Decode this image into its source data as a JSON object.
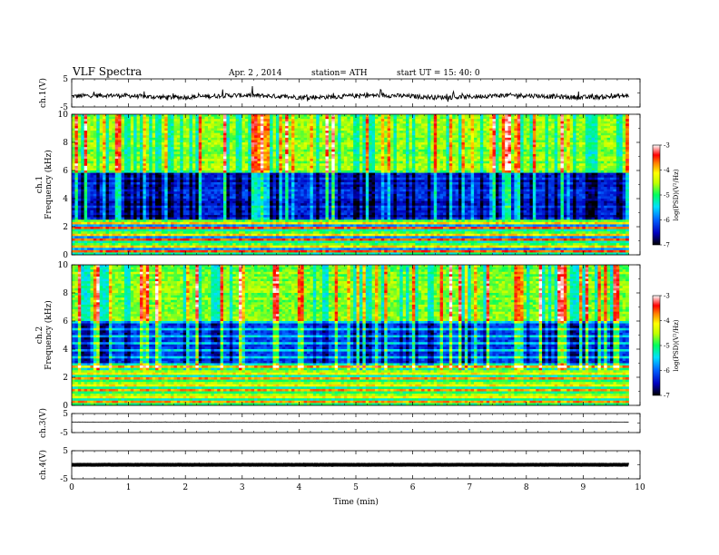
{
  "header": {
    "title": "VLF  Spectra",
    "date": "Apr. 2 , 2014",
    "station": "station= ATH",
    "start": "start  UT  =    15: 40: 0"
  },
  "chart_data": [
    {
      "type": "line",
      "name": "ch1-waveform",
      "ylabel": "ch.1(V)",
      "ylim": [
        -5,
        5
      ],
      "y_ticks": [
        "5",
        "-5"
      ],
      "approx_level": -1.2,
      "approx_spread": 0.8
    },
    {
      "type": "heatmap",
      "name": "ch1-spectrogram",
      "ylabel": "ch.1\nFrequency  (kHz)",
      "ylabel_lines": [
        "ch.1",
        "Frequency  (kHz)"
      ],
      "y_ticks": [
        "0",
        "2",
        "4",
        "6",
        "8",
        "10"
      ],
      "ylim": [
        0,
        10
      ],
      "xlim": [
        0,
        9.8
      ],
      "colorbar": {
        "label": "log(PSD)(V²/Hz)",
        "ticks": [
          "-3",
          "-4",
          "-5",
          "-6",
          "-7"
        ],
        "range": [
          -7,
          -3
        ]
      },
      "bands_kHz": [
        {
          "from": 0,
          "to": 2.5,
          "desc": "striped lines, mixed red/green/blue"
        },
        {
          "from": 2.5,
          "to": 5.8,
          "desc": "dark blue/black background"
        },
        {
          "from": 5.8,
          "to": 10,
          "desc": "green/yellow with red vertical sferics"
        }
      ]
    },
    {
      "type": "heatmap",
      "name": "ch2-spectrogram",
      "ylabel": "ch.2\nFrequency  (kHz)",
      "ylabel_lines": [
        "ch.2",
        "Frequency  (kHz)"
      ],
      "y_ticks": [
        "0",
        "2",
        "4",
        "6",
        "8",
        "10"
      ],
      "ylim": [
        0,
        10
      ],
      "xlim": [
        0,
        9.8
      ],
      "colorbar": {
        "label": "log(PSD)(V²/Hz)",
        "ticks": [
          "-3",
          "-4",
          "-5",
          "-6",
          "-7"
        ],
        "range": [
          -7,
          -3
        ]
      },
      "bands_kHz": [
        {
          "from": 0,
          "to": 3.0,
          "desc": "striped lines, green/yellow/red"
        },
        {
          "from": 3.0,
          "to": 6.0,
          "desc": "blue horizontal banding"
        },
        {
          "from": 6.0,
          "to": 10,
          "desc": "green/yellow with vertical sferics"
        }
      ]
    },
    {
      "type": "line",
      "name": "ch3-waveform",
      "ylabel": "ch.3(V)",
      "ylim": [
        -5,
        5
      ],
      "y_ticks": [
        "5",
        "-5"
      ],
      "approx_level": 0.5,
      "approx_spread": 0.1
    },
    {
      "type": "line",
      "name": "ch4-waveform",
      "ylabel": "ch.4(V)",
      "ylim": [
        -5,
        5
      ],
      "y_ticks": [
        "5",
        "-5"
      ],
      "approx_level": 0.0,
      "approx_spread": 0.05
    }
  ],
  "x_axis": {
    "label": "Time  (min)",
    "ticks": [
      "0",
      "1",
      "2",
      "3",
      "4",
      "5",
      "6",
      "7",
      "8",
      "9",
      "10"
    ],
    "range": [
      0,
      10
    ]
  },
  "colors": {
    "colormap": [
      "#000000",
      "#0000ff",
      "#00c0ff",
      "#00ff80",
      "#c0ff00",
      "#ffff00",
      "#ff8000",
      "#ff0000",
      "#ffffff"
    ]
  }
}
